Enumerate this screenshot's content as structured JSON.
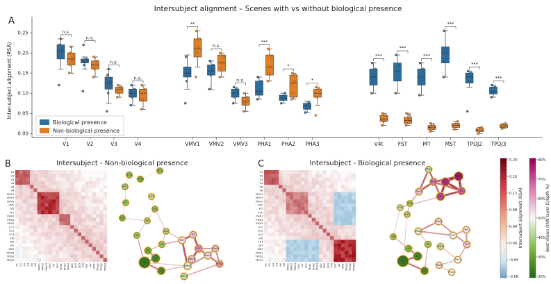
{
  "colors": {
    "biological": "#2e6e9e",
    "non_biological": "#e07f27",
    "heat_pos": "#a50f15",
    "heat_neg": "#2f6fb0",
    "layer_high": "#9c1d66",
    "layer_low": "#2e7d32"
  },
  "chart_data": [
    {
      "type": "box",
      "panel_label": "A",
      "title": "Intersubject alignment – Scenes with vs without biological presence",
      "ylabel": "Inter-subject alignment (RSA)",
      "xlabel": "",
      "ylim": [
        -0.01,
        0.29
      ],
      "yticks": [
        "0.00",
        "0.05",
        "0.10",
        "0.15",
        "0.20",
        "0.25"
      ],
      "grid": false,
      "legend_position": "bottom-left",
      "categories": [
        "V1",
        "V2",
        "V3",
        "V4",
        "VMV1",
        "VMV2",
        "VMV3",
        "PHA1",
        "PHA2",
        "PHA3",
        "V4t",
        "FST",
        "MT",
        "MST",
        "TPOJ2",
        "TPOJ3"
      ],
      "significance": [
        "n.s.",
        "n.s.",
        "n.s.",
        "n.s.",
        "**",
        "n.s.",
        "n.s.",
        "***",
        "*",
        "*",
        "***",
        "***",
        "***",
        "***",
        "***",
        "***"
      ],
      "series": [
        {
          "name": "Biological presence",
          "boxes": [
            {
              "q1": 0.185,
              "median": 0.205,
              "q3": 0.22,
              "whislo": 0.16,
              "whishi": 0.235
            },
            {
              "q1": 0.175,
              "median": 0.18,
              "q3": 0.185,
              "whislo": 0.16,
              "whishi": 0.19
            },
            {
              "q1": 0.11,
              "median": 0.125,
              "q3": 0.14,
              "whislo": 0.075,
              "whishi": 0.16
            },
            {
              "q1": 0.09,
              "median": 0.1,
              "q3": 0.11,
              "whislo": 0.07,
              "whishi": 0.12
            },
            {
              "q1": 0.14,
              "median": 0.15,
              "q3": 0.165,
              "whislo": 0.11,
              "whishi": 0.195
            },
            {
              "q1": 0.145,
              "median": 0.155,
              "q3": 0.17,
              "whislo": 0.11,
              "whishi": 0.18
            },
            {
              "q1": 0.09,
              "median": 0.1,
              "q3": 0.11,
              "whislo": 0.075,
              "whishi": 0.115
            },
            {
              "q1": 0.095,
              "median": 0.105,
              "q3": 0.13,
              "whislo": 0.085,
              "whishi": 0.14
            },
            {
              "q1": 0.082,
              "median": 0.088,
              "q3": 0.095,
              "whislo": 0.075,
              "whishi": 0.1
            },
            {
              "q1": 0.06,
              "median": 0.068,
              "q3": 0.075,
              "whislo": 0.052,
              "whishi": 0.08
            },
            {
              "q1": 0.12,
              "median": 0.14,
              "q3": 0.16,
              "whislo": 0.1,
              "whishi": 0.175
            },
            {
              "q1": 0.13,
              "median": 0.155,
              "q3": 0.175,
              "whislo": 0.1,
              "whishi": 0.195
            },
            {
              "q1": 0.12,
              "median": 0.14,
              "q3": 0.16,
              "whislo": 0.095,
              "whishi": 0.175
            },
            {
              "q1": 0.175,
              "median": 0.2,
              "q3": 0.215,
              "whislo": 0.14,
              "whishi": 0.255
            },
            {
              "q1": 0.125,
              "median": 0.14,
              "q3": 0.15,
              "whislo": 0.115,
              "whishi": 0.155
            },
            {
              "q1": 0.098,
              "median": 0.105,
              "q3": 0.115,
              "whislo": 0.09,
              "whishi": 0.12
            }
          ],
          "points": [
            [
              0.12,
              0.19,
              0.2,
              0.21,
              0.22,
              0.235
            ],
            [
              0.105,
              0.17,
              0.18,
              0.185,
              0.22
            ],
            [
              0.055,
              0.1,
              0.12,
              0.13,
              0.145,
              0.16
            ],
            [
              0.07,
              0.09,
              0.1,
              0.11,
              0.12
            ],
            [
              0.075,
              0.13,
              0.145,
              0.155,
              0.19
            ],
            [
              0.11,
              0.145,
              0.16,
              0.17,
              0.18
            ],
            [
              0.075,
              0.09,
              0.1,
              0.11,
              0.115
            ],
            [
              0.085,
              0.1,
              0.11,
              0.13,
              0.14
            ],
            [
              0.075,
              0.085,
              0.09,
              0.1
            ],
            [
              0.052,
              0.062,
              0.07,
              0.078
            ],
            [
              0.1,
              0.13,
              0.145,
              0.16,
              0.175
            ],
            [
              0.1,
              0.14,
              0.155,
              0.17,
              0.195
            ],
            [
              0.095,
              0.13,
              0.14,
              0.16,
              0.175
            ],
            [
              0.14,
              0.18,
              0.2,
              0.21,
              0.255
            ],
            [
              0.055,
              0.13,
              0.14,
              0.15,
              0.155
            ],
            [
              0.09,
              0.1,
              0.105,
              0.115,
              0.12
            ]
          ]
        },
        {
          "name": "Non-biological presence",
          "boxes": [
            {
              "q1": 0.17,
              "median": 0.185,
              "q3": 0.2,
              "whislo": 0.15,
              "whishi": 0.215
            },
            {
              "q1": 0.16,
              "median": 0.17,
              "q3": 0.18,
              "whislo": 0.14,
              "whishi": 0.19
            },
            {
              "q1": 0.1,
              "median": 0.108,
              "q3": 0.115,
              "whislo": 0.09,
              "whishi": 0.12
            },
            {
              "q1": 0.08,
              "median": 0.1,
              "q3": 0.11,
              "whislo": 0.06,
              "whishi": 0.12
            },
            {
              "q1": 0.19,
              "median": 0.21,
              "q3": 0.235,
              "whislo": 0.165,
              "whishi": 0.255
            },
            {
              "q1": 0.155,
              "median": 0.175,
              "q3": 0.195,
              "whislo": 0.14,
              "whishi": 0.2
            },
            {
              "q1": 0.07,
              "median": 0.08,
              "q3": 0.09,
              "whislo": 0.055,
              "whishi": 0.1
            },
            {
              "q1": 0.145,
              "median": 0.165,
              "q3": 0.195,
              "whislo": 0.13,
              "whishi": 0.21
            },
            {
              "q1": 0.09,
              "median": 0.125,
              "q3": 0.145,
              "whislo": 0.085,
              "whishi": 0.15
            },
            {
              "q1": 0.09,
              "median": 0.1,
              "q3": 0.11,
              "whislo": 0.07,
              "whishi": 0.115
            },
            {
              "q1": 0.03,
              "median": 0.035,
              "q3": 0.045,
              "whislo": 0.02,
              "whishi": 0.05
            },
            {
              "q1": 0.025,
              "median": 0.032,
              "q3": 0.04,
              "whislo": 0.02,
              "whishi": 0.05
            },
            {
              "q1": 0.01,
              "median": 0.015,
              "q3": 0.02,
              "whislo": 0.005,
              "whishi": 0.025
            },
            {
              "q1": 0.015,
              "median": 0.02,
              "q3": 0.025,
              "whislo": 0.01,
              "whishi": 0.03
            },
            {
              "q1": 0.005,
              "median": 0.008,
              "q3": 0.012,
              "whislo": 0.0,
              "whishi": 0.015
            },
            {
              "q1": 0.015,
              "median": 0.018,
              "q3": 0.022,
              "whislo": 0.012,
              "whishi": 0.025
            }
          ],
          "points": [
            [
              0.15,
              0.17,
              0.18,
              0.19,
              0.2,
              0.215
            ],
            [
              0.14,
              0.16,
              0.17,
              0.18,
              0.19
            ],
            [
              0.09,
              0.1,
              0.11,
              0.115,
              0.12
            ],
            [
              0.06,
              0.085,
              0.1,
              0.11,
              0.12
            ],
            [
              0.14,
              0.2,
              0.215,
              0.235,
              0.255
            ],
            [
              0.14,
              0.16,
              0.175,
              0.19,
              0.2
            ],
            [
              0.055,
              0.075,
              0.08,
              0.09,
              0.1
            ],
            [
              0.13,
              0.15,
              0.165,
              0.19,
              0.21
            ],
            [
              0.085,
              0.1,
              0.13,
              0.145,
              0.15
            ],
            [
              0.045,
              0.09,
              0.1,
              0.11,
              0.115
            ],
            [
              0.02,
              0.03,
              0.035,
              0.045,
              0.05
            ],
            [
              0.02,
              0.03,
              0.035,
              0.045,
              0.05
            ],
            [
              0.005,
              0.01,
              0.015,
              0.02,
              0.025
            ],
            [
              0.01,
              0.018,
              0.022,
              0.03
            ],
            [
              0.0,
              0.006,
              0.01,
              0.015
            ],
            [
              0.012,
              0.018,
              0.022,
              0.025
            ]
          ]
        }
      ]
    },
    {
      "type": "heatmap",
      "panel_label": "B",
      "title": "Intersubject - Non-biological presence",
      "labels": [
        "V1",
        "V2",
        "V3",
        "V4",
        "V6",
        "V8",
        "VMV1",
        "VMV2",
        "VMV3",
        "VVC",
        "PIT",
        "FFC",
        "PHA1",
        "PHA2",
        "PHA3",
        "LO1",
        "LO2",
        "LO3",
        "V4t",
        "FST",
        "MT",
        "MST",
        "TPOJ1",
        "TPOJ2",
        "TPOJ3"
      ],
      "hot_blocks": [
        {
          "rows": [
            0,
            3
          ],
          "cols": [
            0,
            3
          ],
          "value": 0.2
        },
        {
          "rows": [
            6,
            11
          ],
          "cols": [
            6,
            11
          ],
          "value": 0.26
        },
        {
          "rows": [
            12,
            14
          ],
          "cols": [
            12,
            14
          ],
          "value": 0.18
        }
      ]
    },
    {
      "type": "network",
      "panel_label": "",
      "title": "",
      "node_labels": [
        "V1",
        "V2",
        "V3",
        "V4",
        "V6",
        "V8",
        "VMV1",
        "VMV2",
        "VMV3",
        "VVC",
        "PIT",
        "FFC",
        "PHA1",
        "PHA2",
        "PHA3",
        "LO1",
        "LO2",
        "LO3",
        "V4t",
        "FST",
        "MT",
        "MST",
        "TPOJ1",
        "TPOJ2",
        "TPOJ3"
      ]
    },
    {
      "type": "heatmap",
      "panel_label": "C",
      "title": "Intersubject - Biological presence",
      "labels": [
        "V1",
        "V2",
        "V3",
        "V4",
        "V6",
        "V8",
        "VMV1",
        "VMV2",
        "VMV3",
        "VVC",
        "PIT",
        "FFC",
        "PHA1",
        "PHA2",
        "PHA3",
        "LO1",
        "LO2",
        "LO3",
        "V4t",
        "FST",
        "MT",
        "MST",
        "TPOJ1",
        "TPOJ2",
        "TPOJ3"
      ],
      "hot_blocks": [
        {
          "rows": [
            0,
            3
          ],
          "cols": [
            0,
            3
          ],
          "value": 0.2
        },
        {
          "rows": [
            6,
            11
          ],
          "cols": [
            6,
            11
          ],
          "value": 0.16
        },
        {
          "rows": [
            19,
            24
          ],
          "cols": [
            19,
            24
          ],
          "value": 0.27
        }
      ]
    },
    {
      "type": "network",
      "panel_label": "",
      "title": "",
      "node_labels": [
        "V1",
        "V2",
        "V3",
        "V4",
        "V6",
        "V8",
        "VMV1",
        "VMV2",
        "VMV3",
        "VVC",
        "PIT",
        "FFC",
        "PHA1",
        "PHA2",
        "PHA3",
        "LO1",
        "LO2",
        "LO3",
        "V4t",
        "FST",
        "MT",
        "MST",
        "TPOJ1",
        "TPOJ2",
        "TPOJ3"
      ]
    }
  ],
  "colorbars": [
    {
      "label": "Intersubject alignment (RSA)",
      "ticks": [
        "0.20",
        "0.16",
        "0.12",
        "0.08",
        "0.04",
        "0.00",
        "-0.04",
        "-0.08"
      ]
    },
    {
      "label": "Best Vision DNN layer (Depth %)",
      "ticks": [
        "80%",
        "70%",
        "60%",
        "50%",
        "40%",
        "30%",
        "20%"
      ]
    }
  ]
}
